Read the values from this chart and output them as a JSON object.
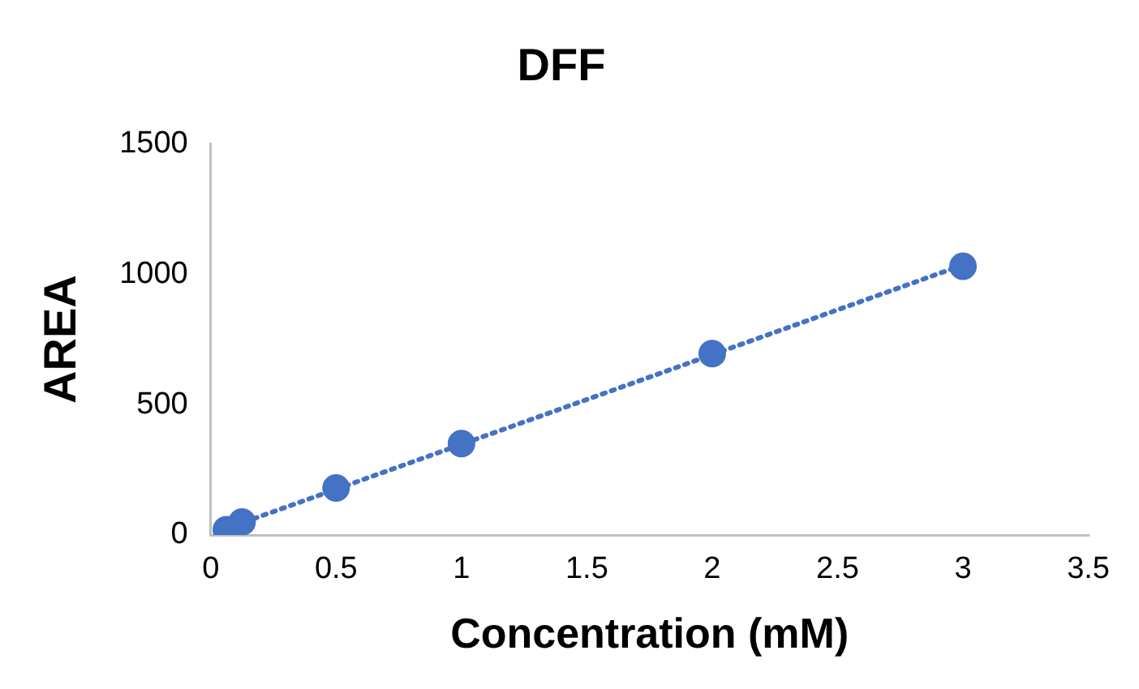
{
  "chart_data": {
    "type": "scatter",
    "title": "DFF",
    "xlabel": "Concentration (mM)",
    "ylabel": "AREA",
    "x": [
      0.0625,
      0.125,
      0.5,
      1,
      2,
      3
    ],
    "series": [
      {
        "color": "#4472c4",
        "values": [
          20,
          50,
          180,
          350,
          695,
          1030
        ]
      },
      {
        "type": "line",
        "color": "#4472c4",
        "x": [
          0.0625,
          3
        ],
        "values": [
          25,
          1035
        ],
        "line_style": "dotted",
        "marker": "none"
      }
    ],
    "xlim": [
      0,
      3.5
    ],
    "xticks": [
      0,
      0.5,
      1,
      1.5,
      2,
      2.5,
      3,
      3.5
    ],
    "ylim": [
      0,
      1500
    ],
    "yticks": [
      0,
      500,
      1000,
      1500
    ],
    "grid": false,
    "legend": false,
    "marker": "circle"
  }
}
